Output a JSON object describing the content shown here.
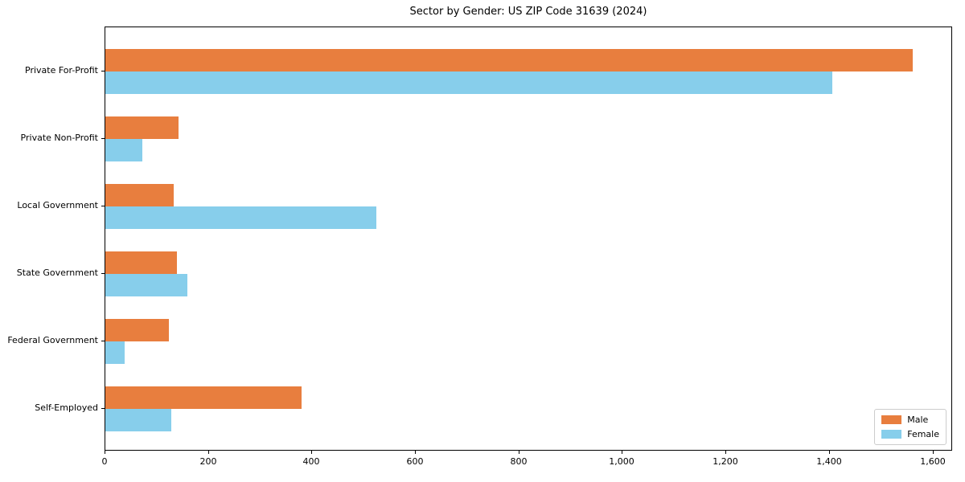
{
  "chart_data": {
    "type": "bar",
    "orientation": "horizontal",
    "title": "Sector by Gender: US ZIP Code 31639 (2024)",
    "categories": [
      "Private For-Profit",
      "Private Non-Profit",
      "Local Government",
      "State Government",
      "Federal Government",
      "Self-Employed"
    ],
    "series": [
      {
        "name": "Male",
        "color": "#e87e3e",
        "values": [
          1560,
          141,
          132,
          138,
          122,
          379
        ]
      },
      {
        "name": "Female",
        "color": "#87ceeb",
        "values": [
          1405,
          72,
          523,
          158,
          37,
          127
        ]
      }
    ],
    "xlabel": "",
    "ylabel": "",
    "xlim": [
      0,
      1638
    ],
    "xticks": [
      0,
      200,
      400,
      600,
      800,
      1000,
      1200,
      1400,
      1600
    ],
    "grid": false,
    "legend": {
      "position": "lower right"
    }
  }
}
